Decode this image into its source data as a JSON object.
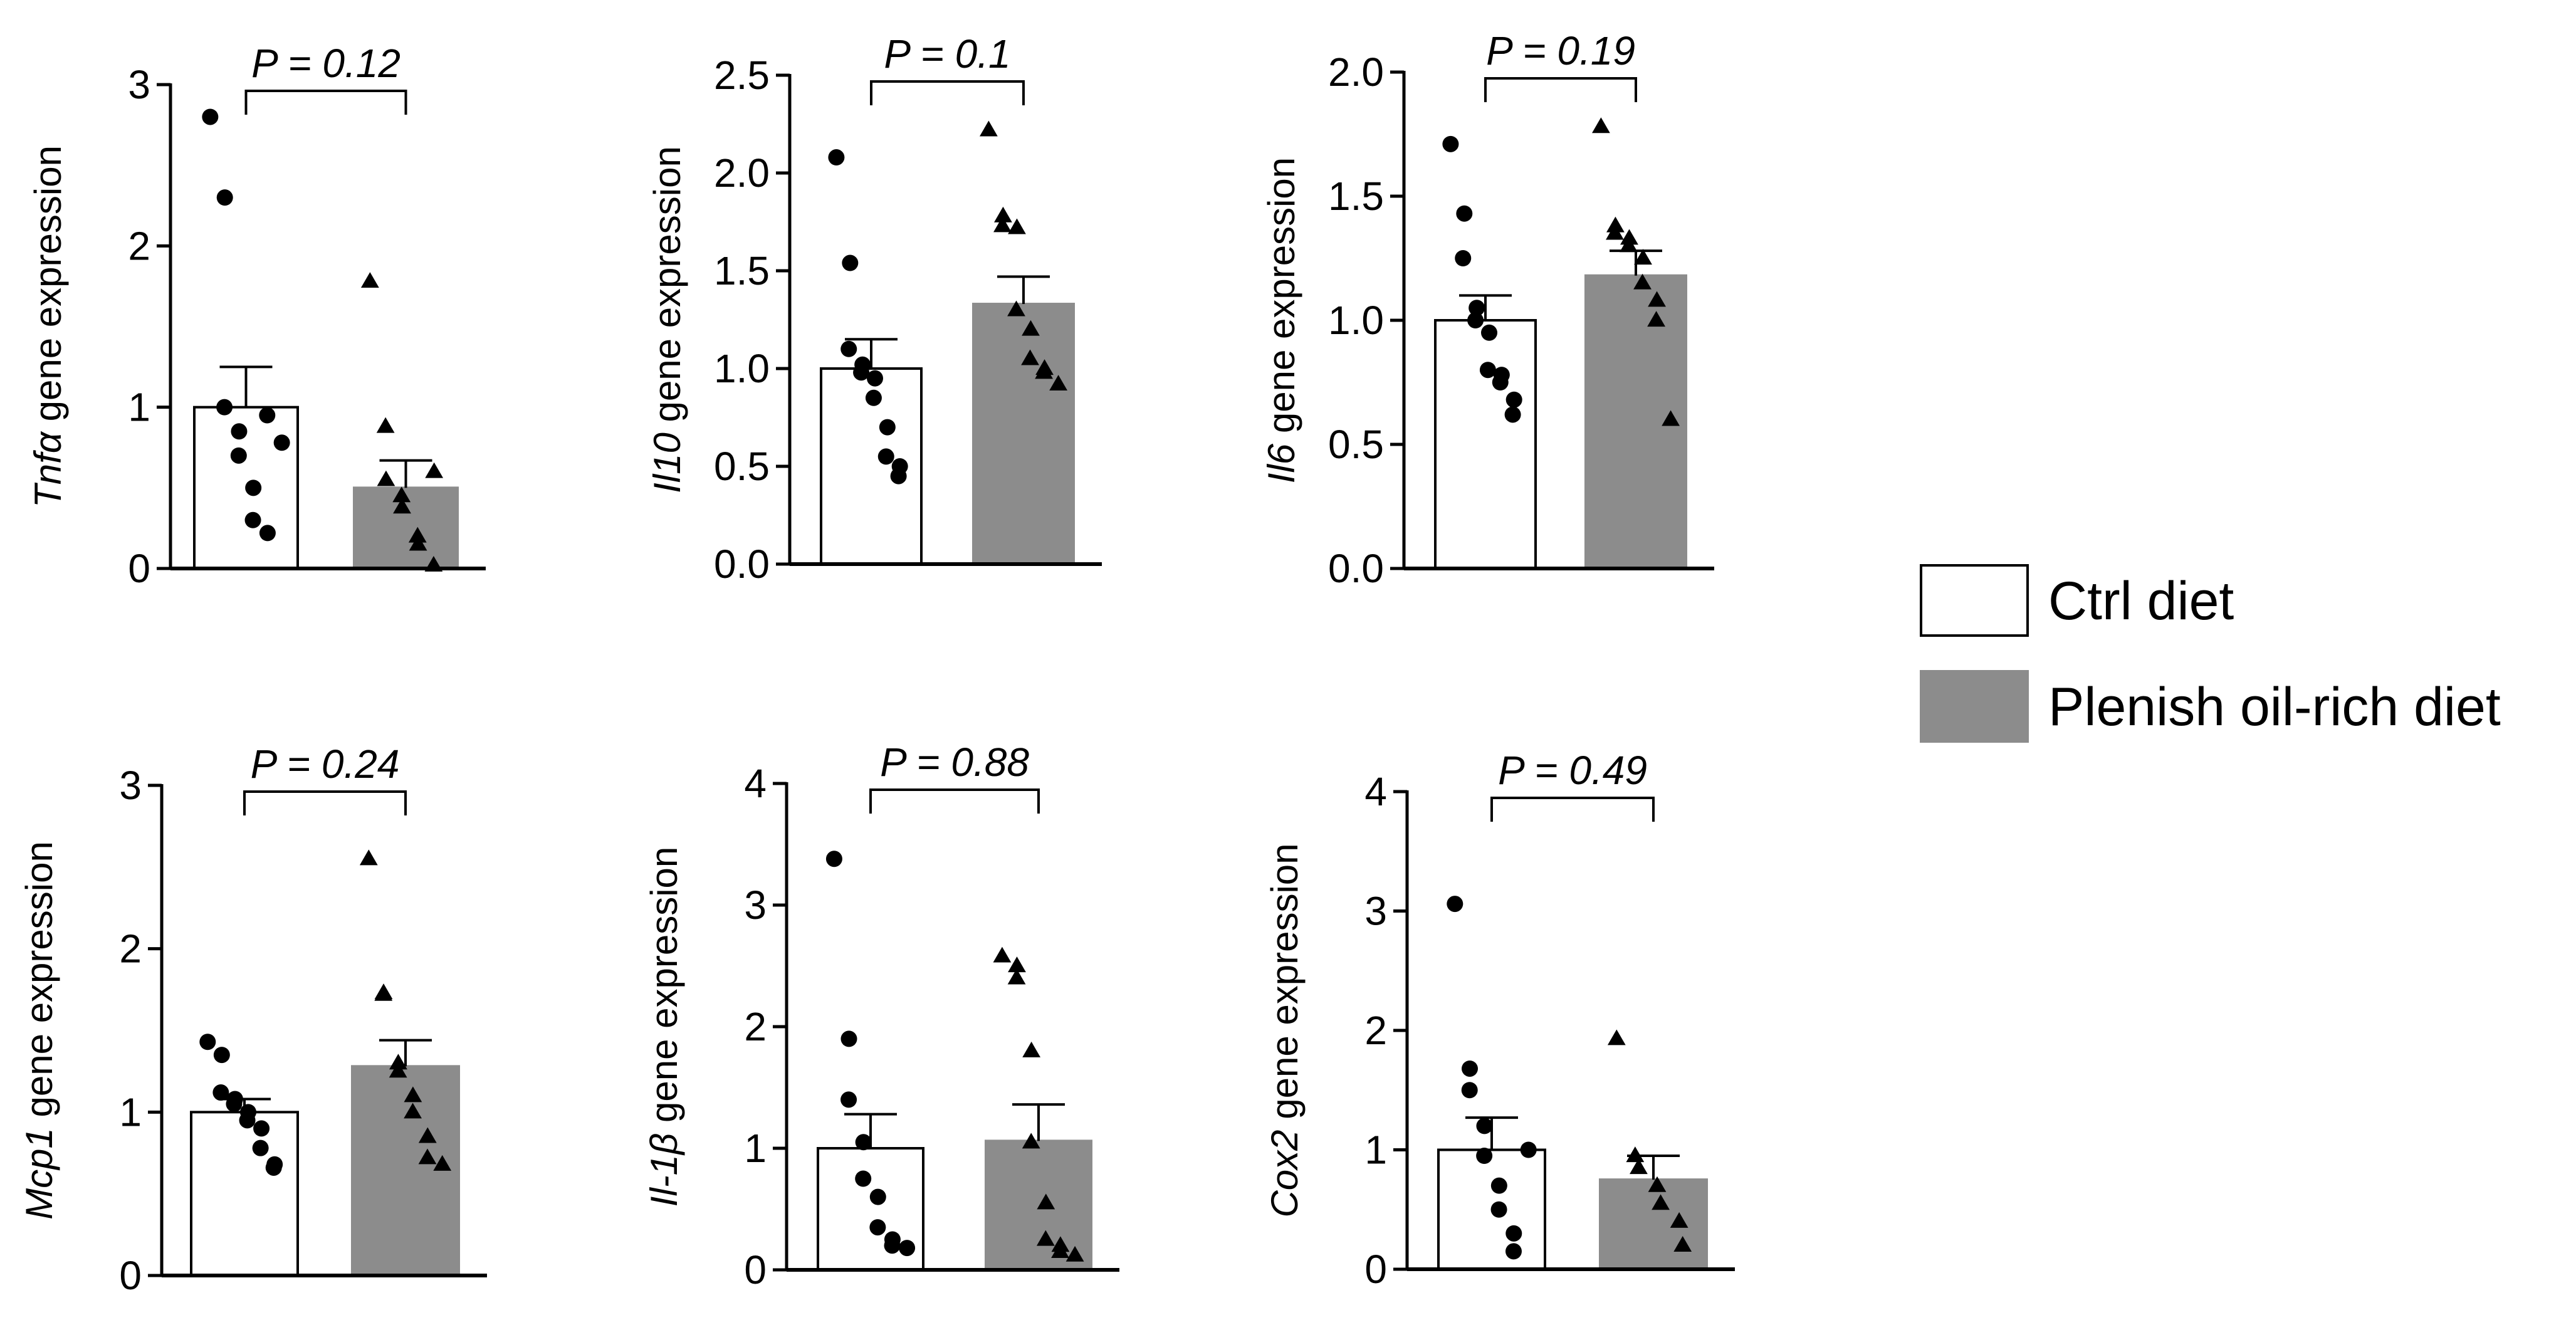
{
  "legend": {
    "ctrl_label": "Ctrl diet",
    "plenish_label": "Plenish oil-rich diet"
  },
  "colors": {
    "ctrl_fill": "#ffffff",
    "plenish_fill": "#8c8c8c",
    "ink": "#000000"
  },
  "chart_data": [
    {
      "type": "bar",
      "gene": "Tnfα",
      "ylabel_suffix": " gene expression",
      "pvalue": "P = 0.12",
      "ylim": [
        0,
        3
      ],
      "ticks": [
        0,
        1,
        2,
        3
      ],
      "tick_labels": [
        "0",
        "1",
        "2",
        "3"
      ],
      "series": [
        {
          "name": "Ctrl diet",
          "mean": 1.0,
          "sem": 0.25,
          "marker": "circle",
          "points": [
            2.8,
            2.3,
            1.0,
            0.85,
            0.7,
            0.5,
            0.3,
            0.22,
            0.95,
            0.78
          ]
        },
        {
          "name": "Plenish oil-rich diet",
          "mean": 0.5,
          "sem": 0.17,
          "marker": "triangle",
          "points": [
            1.78,
            0.88,
            0.55,
            0.45,
            0.38,
            0.2,
            0.15,
            0.02,
            0.6
          ]
        }
      ]
    },
    {
      "type": "bar",
      "gene": "Il10",
      "ylabel_suffix": " gene expression",
      "pvalue": "P = 0.1",
      "ylim": [
        0,
        2.5
      ],
      "ticks": [
        0,
        0.5,
        1.0,
        1.5,
        2.0,
        2.5
      ],
      "tick_labels": [
        "0.0",
        "0.5",
        "1.0",
        "1.5",
        "2.0",
        "2.5"
      ],
      "series": [
        {
          "name": "Ctrl diet",
          "mean": 1.0,
          "sem": 0.15,
          "marker": "circle",
          "points": [
            2.08,
            1.54,
            1.1,
            1.02,
            0.98,
            0.95,
            0.85,
            0.7,
            0.55,
            0.5,
            0.45
          ]
        },
        {
          "name": "Plenish oil-rich diet",
          "mean": 1.33,
          "sem": 0.14,
          "marker": "triangle",
          "points": [
            2.22,
            1.78,
            1.73,
            1.72,
            1.3,
            1.2,
            1.05,
            1.0,
            0.98,
            0.92
          ]
        }
      ]
    },
    {
      "type": "bar",
      "gene": "Il6",
      "ylabel_suffix": " gene expression",
      "pvalue": "P = 0.19",
      "ylim": [
        0,
        2.0
      ],
      "ticks": [
        0,
        0.5,
        1.0,
        1.5,
        2.0
      ],
      "tick_labels": [
        "0.0",
        "0.5",
        "1.0",
        "1.5",
        "2.0"
      ],
      "series": [
        {
          "name": "Ctrl diet",
          "mean": 1.0,
          "sem": 0.1,
          "marker": "circle",
          "points": [
            1.71,
            1.43,
            1.25,
            1.05,
            1.0,
            0.95,
            0.8,
            0.78,
            0.75,
            0.68,
            0.62
          ]
        },
        {
          "name": "Plenish oil-rich diet",
          "mean": 1.18,
          "sem": 0.1,
          "marker": "triangle",
          "points": [
            1.78,
            1.38,
            1.35,
            1.33,
            1.3,
            1.25,
            1.15,
            1.08,
            1.0,
            0.6
          ]
        }
      ]
    },
    {
      "type": "bar",
      "gene": "Mcp1",
      "ylabel_suffix": " gene expression",
      "pvalue": "P = 0.24",
      "ylim": [
        0,
        3
      ],
      "ticks": [
        0,
        1,
        2,
        3
      ],
      "tick_labels": [
        "0",
        "1",
        "2",
        "3"
      ],
      "series": [
        {
          "name": "Ctrl diet",
          "mean": 1.0,
          "sem": 0.08,
          "marker": "circle",
          "points": [
            1.43,
            1.35,
            1.12,
            1.08,
            1.05,
            1.0,
            0.95,
            0.9,
            0.78,
            0.68,
            0.66
          ]
        },
        {
          "name": "Plenish oil-rich diet",
          "mean": 1.28,
          "sem": 0.16,
          "marker": "triangle",
          "points": [
            2.55,
            1.73,
            1.72,
            1.3,
            1.25,
            1.1,
            1.0,
            0.85,
            0.72,
            0.68
          ]
        }
      ]
    },
    {
      "type": "bar",
      "gene": "Il-1β",
      "ylabel_suffix": " gene expression",
      "pvalue": "P = 0.88",
      "ylim": [
        0,
        4
      ],
      "ticks": [
        0,
        1,
        2,
        3,
        4
      ],
      "tick_labels": [
        "0",
        "1",
        "2",
        "3",
        "4"
      ],
      "series": [
        {
          "name": "Ctrl diet",
          "mean": 1.0,
          "sem": 0.28,
          "marker": "circle",
          "points": [
            3.38,
            1.9,
            1.4,
            1.05,
            0.75,
            0.6,
            0.35,
            0.25,
            0.2,
            0.18
          ]
        },
        {
          "name": "Plenish oil-rich diet",
          "mean": 1.06,
          "sem": 0.3,
          "marker": "triangle",
          "points": [
            2.58,
            2.5,
            2.4,
            1.8,
            1.05,
            0.55,
            0.25,
            0.2,
            0.15,
            0.12
          ]
        }
      ]
    },
    {
      "type": "bar",
      "gene": "Cox2",
      "ylabel_suffix": " gene expression",
      "pvalue": "P = 0.49",
      "ylim": [
        0,
        4
      ],
      "ticks": [
        0,
        1,
        2,
        3,
        4
      ],
      "tick_labels": [
        "0",
        "1",
        "2",
        "3",
        "4"
      ],
      "series": [
        {
          "name": "Ctrl diet",
          "mean": 1.0,
          "sem": 0.27,
          "marker": "circle",
          "points": [
            3.06,
            1.68,
            1.5,
            1.2,
            0.95,
            0.7,
            0.5,
            0.3,
            0.15,
            1.0
          ]
        },
        {
          "name": "Plenish oil-rich diet",
          "mean": 0.75,
          "sem": 0.2,
          "marker": "triangle",
          "points": [
            1.93,
            0.95,
            0.85,
            0.7,
            0.55,
            0.4,
            0.2
          ]
        }
      ]
    }
  ]
}
